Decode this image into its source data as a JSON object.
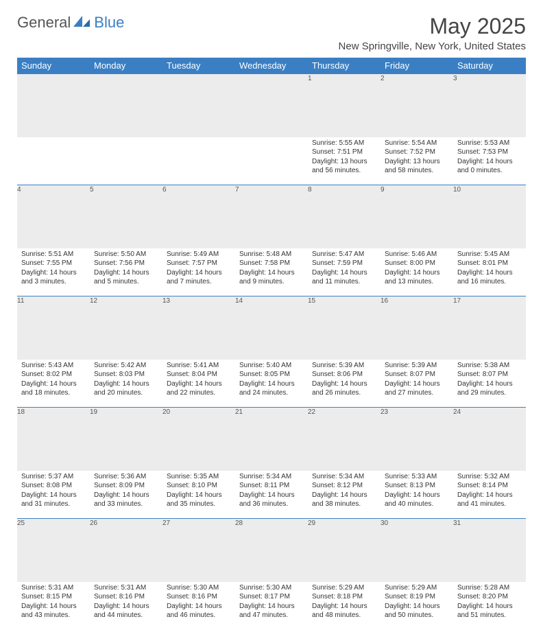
{
  "brand": {
    "part1": "General",
    "part2": "Blue"
  },
  "title": "May 2025",
  "location": "New Springville, New York, United States",
  "days_of_week": [
    "Sunday",
    "Monday",
    "Tuesday",
    "Wednesday",
    "Thursday",
    "Friday",
    "Saturday"
  ],
  "colors": {
    "header_bg": "#3a7fc4",
    "header_text": "#ffffff",
    "daynum_bg": "#ececec",
    "border": "#3a7fc4",
    "brand_blue": "#3a7fc4",
    "brand_gray": "#555555"
  },
  "weeks": [
    [
      null,
      null,
      null,
      null,
      {
        "n": "1",
        "sr": "Sunrise: 5:55 AM",
        "ss": "Sunset: 7:51 PM",
        "d1": "Daylight: 13 hours",
        "d2": "and 56 minutes."
      },
      {
        "n": "2",
        "sr": "Sunrise: 5:54 AM",
        "ss": "Sunset: 7:52 PM",
        "d1": "Daylight: 13 hours",
        "d2": "and 58 minutes."
      },
      {
        "n": "3",
        "sr": "Sunrise: 5:53 AM",
        "ss": "Sunset: 7:53 PM",
        "d1": "Daylight: 14 hours",
        "d2": "and 0 minutes."
      }
    ],
    [
      {
        "n": "4",
        "sr": "Sunrise: 5:51 AM",
        "ss": "Sunset: 7:55 PM",
        "d1": "Daylight: 14 hours",
        "d2": "and 3 minutes."
      },
      {
        "n": "5",
        "sr": "Sunrise: 5:50 AM",
        "ss": "Sunset: 7:56 PM",
        "d1": "Daylight: 14 hours",
        "d2": "and 5 minutes."
      },
      {
        "n": "6",
        "sr": "Sunrise: 5:49 AM",
        "ss": "Sunset: 7:57 PM",
        "d1": "Daylight: 14 hours",
        "d2": "and 7 minutes."
      },
      {
        "n": "7",
        "sr": "Sunrise: 5:48 AM",
        "ss": "Sunset: 7:58 PM",
        "d1": "Daylight: 14 hours",
        "d2": "and 9 minutes."
      },
      {
        "n": "8",
        "sr": "Sunrise: 5:47 AM",
        "ss": "Sunset: 7:59 PM",
        "d1": "Daylight: 14 hours",
        "d2": "and 11 minutes."
      },
      {
        "n": "9",
        "sr": "Sunrise: 5:46 AM",
        "ss": "Sunset: 8:00 PM",
        "d1": "Daylight: 14 hours",
        "d2": "and 13 minutes."
      },
      {
        "n": "10",
        "sr": "Sunrise: 5:45 AM",
        "ss": "Sunset: 8:01 PM",
        "d1": "Daylight: 14 hours",
        "d2": "and 16 minutes."
      }
    ],
    [
      {
        "n": "11",
        "sr": "Sunrise: 5:43 AM",
        "ss": "Sunset: 8:02 PM",
        "d1": "Daylight: 14 hours",
        "d2": "and 18 minutes."
      },
      {
        "n": "12",
        "sr": "Sunrise: 5:42 AM",
        "ss": "Sunset: 8:03 PM",
        "d1": "Daylight: 14 hours",
        "d2": "and 20 minutes."
      },
      {
        "n": "13",
        "sr": "Sunrise: 5:41 AM",
        "ss": "Sunset: 8:04 PM",
        "d1": "Daylight: 14 hours",
        "d2": "and 22 minutes."
      },
      {
        "n": "14",
        "sr": "Sunrise: 5:40 AM",
        "ss": "Sunset: 8:05 PM",
        "d1": "Daylight: 14 hours",
        "d2": "and 24 minutes."
      },
      {
        "n": "15",
        "sr": "Sunrise: 5:39 AM",
        "ss": "Sunset: 8:06 PM",
        "d1": "Daylight: 14 hours",
        "d2": "and 26 minutes."
      },
      {
        "n": "16",
        "sr": "Sunrise: 5:39 AM",
        "ss": "Sunset: 8:07 PM",
        "d1": "Daylight: 14 hours",
        "d2": "and 27 minutes."
      },
      {
        "n": "17",
        "sr": "Sunrise: 5:38 AM",
        "ss": "Sunset: 8:07 PM",
        "d1": "Daylight: 14 hours",
        "d2": "and 29 minutes."
      }
    ],
    [
      {
        "n": "18",
        "sr": "Sunrise: 5:37 AM",
        "ss": "Sunset: 8:08 PM",
        "d1": "Daylight: 14 hours",
        "d2": "and 31 minutes."
      },
      {
        "n": "19",
        "sr": "Sunrise: 5:36 AM",
        "ss": "Sunset: 8:09 PM",
        "d1": "Daylight: 14 hours",
        "d2": "and 33 minutes."
      },
      {
        "n": "20",
        "sr": "Sunrise: 5:35 AM",
        "ss": "Sunset: 8:10 PM",
        "d1": "Daylight: 14 hours",
        "d2": "and 35 minutes."
      },
      {
        "n": "21",
        "sr": "Sunrise: 5:34 AM",
        "ss": "Sunset: 8:11 PM",
        "d1": "Daylight: 14 hours",
        "d2": "and 36 minutes."
      },
      {
        "n": "22",
        "sr": "Sunrise: 5:34 AM",
        "ss": "Sunset: 8:12 PM",
        "d1": "Daylight: 14 hours",
        "d2": "and 38 minutes."
      },
      {
        "n": "23",
        "sr": "Sunrise: 5:33 AM",
        "ss": "Sunset: 8:13 PM",
        "d1": "Daylight: 14 hours",
        "d2": "and 40 minutes."
      },
      {
        "n": "24",
        "sr": "Sunrise: 5:32 AM",
        "ss": "Sunset: 8:14 PM",
        "d1": "Daylight: 14 hours",
        "d2": "and 41 minutes."
      }
    ],
    [
      {
        "n": "25",
        "sr": "Sunrise: 5:31 AM",
        "ss": "Sunset: 8:15 PM",
        "d1": "Daylight: 14 hours",
        "d2": "and 43 minutes."
      },
      {
        "n": "26",
        "sr": "Sunrise: 5:31 AM",
        "ss": "Sunset: 8:16 PM",
        "d1": "Daylight: 14 hours",
        "d2": "and 44 minutes."
      },
      {
        "n": "27",
        "sr": "Sunrise: 5:30 AM",
        "ss": "Sunset: 8:16 PM",
        "d1": "Daylight: 14 hours",
        "d2": "and 46 minutes."
      },
      {
        "n": "28",
        "sr": "Sunrise: 5:30 AM",
        "ss": "Sunset: 8:17 PM",
        "d1": "Daylight: 14 hours",
        "d2": "and 47 minutes."
      },
      {
        "n": "29",
        "sr": "Sunrise: 5:29 AM",
        "ss": "Sunset: 8:18 PM",
        "d1": "Daylight: 14 hours",
        "d2": "and 48 minutes."
      },
      {
        "n": "30",
        "sr": "Sunrise: 5:29 AM",
        "ss": "Sunset: 8:19 PM",
        "d1": "Daylight: 14 hours",
        "d2": "and 50 minutes."
      },
      {
        "n": "31",
        "sr": "Sunrise: 5:28 AM",
        "ss": "Sunset: 8:20 PM",
        "d1": "Daylight: 14 hours",
        "d2": "and 51 minutes."
      }
    ]
  ]
}
